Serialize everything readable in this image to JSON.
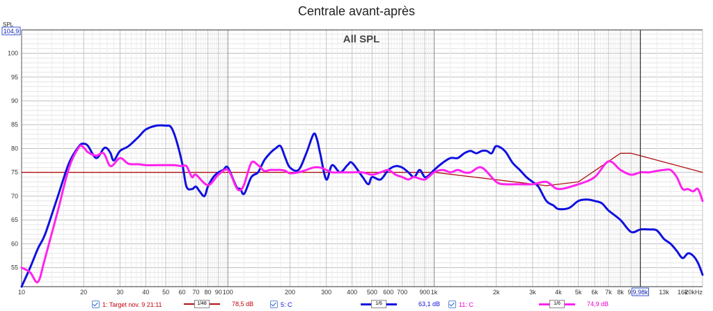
{
  "title": "Centrale avant-après",
  "overlay": {
    "y_axis_unit": "SPL",
    "cursor_y_value": "104,9",
    "cursor_x_value": "9,98k",
    "chart_label": "All SPL"
  },
  "chart_data": {
    "type": "line",
    "title": "Centrale avant-après",
    "subtitle": "All SPL",
    "xlabel": "",
    "ylabel": "SPL",
    "xscale": "log",
    "xlim": [
      10,
      20000
    ],
    "ylim": [
      51,
      104.9
    ],
    "grid": true,
    "y_ticks": [
      55,
      60,
      65,
      70,
      75,
      80,
      85,
      90,
      95,
      100
    ],
    "x_ticks": [
      {
        "value": 10,
        "label": "10"
      },
      {
        "value": 20,
        "label": "20"
      },
      {
        "value": 30,
        "label": "30"
      },
      {
        "value": 40,
        "label": "40"
      },
      {
        "value": 50,
        "label": "50"
      },
      {
        "value": 60,
        "label": "60"
      },
      {
        "value": 70,
        "label": "70"
      },
      {
        "value": 80,
        "label": "80"
      },
      {
        "value": 90,
        "label": "90"
      },
      {
        "value": 100,
        "label": "100"
      },
      {
        "value": 200,
        "label": "200"
      },
      {
        "value": 300,
        "label": "300"
      },
      {
        "value": 400,
        "label": "400"
      },
      {
        "value": 500,
        "label": "500"
      },
      {
        "value": 600,
        "label": "600"
      },
      {
        "value": 700,
        "label": "700"
      },
      {
        "value": 900,
        "label": "900"
      },
      {
        "value": 1000,
        "label": "1k"
      },
      {
        "value": 2000,
        "label": "2k"
      },
      {
        "value": 3000,
        "label": "3k"
      },
      {
        "value": 4000,
        "label": "4k"
      },
      {
        "value": 5000,
        "label": "5k"
      },
      {
        "value": 6000,
        "label": "6k"
      },
      {
        "value": 7000,
        "label": "7k"
      },
      {
        "value": 8000,
        "label": "8k"
      },
      {
        "value": 9000,
        "label": "9k"
      },
      {
        "value": 13000,
        "label": "13k"
      },
      {
        "value": 16000,
        "label": "16k"
      },
      {
        "value": 20000,
        "label": "20kHz"
      }
    ],
    "cursor_x": 9980,
    "series": [
      {
        "name": "1: Target nov. 9 21:11",
        "color": "#b01010",
        "width": 1.3,
        "smoothing": "1/48",
        "value_at_cursor": "78,5 dB",
        "x": [
          10,
          800,
          1000,
          3500,
          5000,
          8000,
          9000,
          20000
        ],
        "y": [
          75,
          75,
          75,
          72.2,
          73,
          79,
          79,
          75
        ]
      },
      {
        "name": "5: C",
        "color": "#1010e0",
        "width": 3,
        "smoothing": "1/6",
        "value_at_cursor": "63,1 dB",
        "x": [
          10,
          11,
          12,
          13,
          15,
          17,
          19,
          20,
          21,
          23,
          25,
          26,
          27,
          28,
          30,
          33,
          37,
          40,
          45,
          50,
          53,
          56,
          60,
          63,
          67,
          70,
          73,
          77,
          80,
          85,
          90,
          95,
          100,
          110,
          115,
          120,
          130,
          140,
          150,
          160,
          170,
          180,
          190,
          200,
          220,
          240,
          260,
          270,
          280,
          300,
          320,
          350,
          380,
          400,
          450,
          480,
          500,
          550,
          600,
          650,
          700,
          750,
          800,
          850,
          900,
          950,
          1000,
          1100,
          1200,
          1300,
          1400,
          1500,
          1600,
          1700,
          1800,
          1900,
          2000,
          2200,
          2400,
          2600,
          2800,
          3000,
          3200,
          3500,
          3800,
          4000,
          4500,
          5000,
          5500,
          6000,
          6500,
          7000,
          8000,
          9000,
          10000,
          11000,
          12000,
          13000,
          14000,
          15000,
          16000,
          17000,
          18000,
          19000,
          20000
        ],
        "y": [
          51,
          55,
          59,
          62,
          70,
          77,
          80.5,
          81,
          80.5,
          78,
          80,
          80,
          79,
          77.5,
          79.5,
          80.5,
          82.5,
          84,
          84.8,
          84.8,
          84.5,
          82,
          77,
          72,
          71.5,
          72,
          71,
          70,
          72,
          74,
          75,
          75.5,
          76,
          72,
          71.5,
          70.5,
          74,
          75,
          77.5,
          79,
          80,
          80.5,
          78,
          76,
          75.5,
          79,
          83,
          82,
          79,
          73.5,
          76.5,
          75,
          76.5,
          77,
          74,
          72.5,
          74,
          73.5,
          75.5,
          76.3,
          76,
          75,
          74,
          75.5,
          74,
          74.5,
          75.5,
          77,
          78,
          78,
          79,
          79.5,
          79,
          79.5,
          79.5,
          79,
          80.5,
          79.5,
          77,
          75.5,
          74,
          73,
          72,
          69,
          68,
          67.3,
          67.5,
          69,
          69.3,
          69,
          68.5,
          67,
          65,
          62.5,
          63,
          63,
          62.8,
          61,
          60,
          58.5,
          57,
          58,
          57.5,
          56,
          53.5
        ]
      },
      {
        "name": "11: C",
        "color": "#ff22ee",
        "width": 3,
        "smoothing": "1/6",
        "value_at_cursor": "74,9 dB",
        "x": [
          10,
          11,
          12,
          13,
          15,
          17,
          19,
          20,
          21,
          23,
          25,
          27,
          30,
          33,
          37,
          40,
          45,
          50,
          55,
          60,
          63,
          67,
          70,
          80,
          90,
          100,
          110,
          115,
          120,
          130,
          140,
          150,
          160,
          170,
          180,
          190,
          200,
          220,
          240,
          260,
          280,
          300,
          320,
          350,
          400,
          450,
          500,
          550,
          600,
          650,
          700,
          750,
          800,
          900,
          1000,
          1100,
          1200,
          1300,
          1400,
          1500,
          1700,
          2000,
          2200,
          2500,
          3000,
          3500,
          4000,
          5000,
          6000,
          7000,
          8000,
          9000,
          10000,
          11000,
          12000,
          13000,
          14000,
          15000,
          16000,
          17000,
          18000,
          19000,
          20000
        ],
        "y": [
          55,
          54,
          52,
          57,
          67,
          76,
          80.3,
          80.2,
          79.2,
          78.5,
          79,
          76.3,
          78,
          76.8,
          76.7,
          76.5,
          76.5,
          76.5,
          76.5,
          76.3,
          76.3,
          74,
          74.5,
          72.3,
          74.5,
          75.5,
          71.8,
          71.3,
          72.5,
          77,
          76.5,
          75.3,
          75.5,
          75.5,
          75.5,
          75.3,
          74.8,
          75,
          75.5,
          76,
          76,
          75.5,
          75,
          75,
          75,
          75,
          74.5,
          75,
          75.5,
          74.5,
          74,
          73.5,
          74,
          73.5,
          75,
          75.5,
          75,
          75.5,
          75,
          75,
          76,
          73,
          72.5,
          72.5,
          72.5,
          73,
          71.5,
          72.5,
          74,
          77.3,
          75.5,
          74.5,
          75,
          75,
          75.3,
          75.5,
          75.5,
          74,
          71.5,
          71.5,
          71,
          71.5,
          69
        ]
      }
    ]
  },
  "legend": [
    {
      "checked": true,
      "label": "1: Target nov. 9 21:11",
      "smoothing": "1/48",
      "value": "78,5 dB",
      "color": "#c0000a"
    },
    {
      "checked": true,
      "label": "5: C",
      "smoothing": "1/6",
      "value": "63,1 dB",
      "color": "#1010e0"
    },
    {
      "checked": true,
      "label": "11: C",
      "smoothing": "1/6",
      "value": "74,9 dB",
      "color": "#ee00cc"
    }
  ]
}
